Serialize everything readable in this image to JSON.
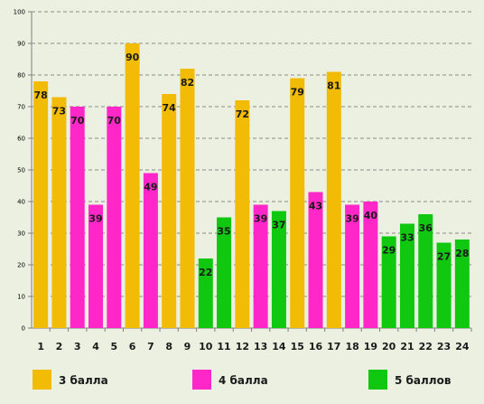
{
  "chart_data": {
    "type": "bar",
    "categories": [
      "1",
      "2",
      "3",
      "4",
      "5",
      "6",
      "7",
      "8",
      "9",
      "10",
      "11",
      "12",
      "13",
      "14",
      "15",
      "16",
      "17",
      "18",
      "19",
      "20",
      "21",
      "22",
      "23",
      "24"
    ],
    "values": [
      78,
      73,
      70,
      39,
      70,
      90,
      49,
      74,
      82,
      22,
      35,
      72,
      39,
      37,
      79,
      43,
      81,
      39,
      40,
      29,
      33,
      36,
      27,
      28
    ],
    "groups": [
      "3",
      "3",
      "4",
      "4",
      "4",
      "3",
      "4",
      "3",
      "3",
      "5",
      "5",
      "3",
      "4",
      "5",
      "3",
      "4",
      "3",
      "4",
      "4",
      "5",
      "5",
      "5",
      "5",
      "5"
    ],
    "ylim": [
      0,
      100
    ],
    "yticks": [
      0,
      10,
      20,
      30,
      40,
      50,
      60,
      70,
      80,
      90,
      100
    ],
    "grid": true,
    "legend_position": "bottom",
    "legend": [
      {
        "key": "3",
        "label": "3 балла",
        "color": "#f2bb05"
      },
      {
        "key": "4",
        "label": "4 балла",
        "color": "#ff27c8"
      },
      {
        "key": "5",
        "label": "5 баллов",
        "color": "#0fc80f"
      }
    ]
  }
}
